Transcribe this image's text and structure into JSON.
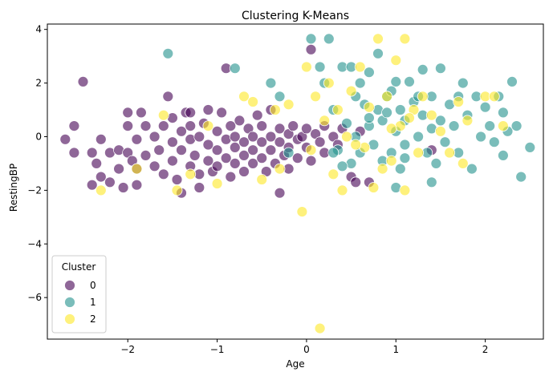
{
  "chart_data": {
    "type": "scatter",
    "title": "Clustering K-Means",
    "xlabel": "Age",
    "ylabel": "RestingBP",
    "xlim": [
      -2.9,
      2.65
    ],
    "ylim": [
      -7.55,
      4.2
    ],
    "xticks": [
      -2,
      -1,
      0,
      1,
      2
    ],
    "yticks": [
      -6,
      -4,
      -2,
      0,
      2,
      4
    ],
    "xtick_labels": [
      "−2",
      "−1",
      "0",
      "1",
      "2"
    ],
    "ytick_labels": [
      "−6",
      "−4",
      "−2",
      "0",
      "2",
      "4"
    ],
    "grid": false,
    "legend": {
      "title": "Cluster",
      "position": "lower-left",
      "entries": [
        "0",
        "1",
        "2"
      ]
    },
    "series": [
      {
        "name": "0",
        "color": "#440154",
        "points": [
          [
            -2.5,
            2.05
          ],
          [
            -2.7,
            -0.1
          ],
          [
            -2.6,
            0.4
          ],
          [
            -2.6,
            -0.6
          ],
          [
            -2.3,
            -0.1
          ],
          [
            -2.35,
            -1.0
          ],
          [
            -2.4,
            -0.6
          ],
          [
            -2.3,
            -1.5
          ],
          [
            -2.4,
            -1.8
          ],
          [
            -2.2,
            -0.6
          ],
          [
            -2.2,
            -1.7
          ],
          [
            -2.1,
            -0.5
          ],
          [
            -2.1,
            -1.2
          ],
          [
            -2.05,
            -1.9
          ],
          [
            -2.0,
            0.9
          ],
          [
            -2.0,
            0.4
          ],
          [
            -2.0,
            -0.6
          ],
          [
            -1.95,
            -0.9
          ],
          [
            -1.9,
            -1.2
          ],
          [
            -1.9,
            -0.1
          ],
          [
            -1.9,
            -1.8
          ],
          [
            -1.85,
            0.9
          ],
          [
            -1.8,
            0.4
          ],
          [
            -1.8,
            -0.7
          ],
          [
            -1.7,
            -1.1
          ],
          [
            -1.7,
            0.0
          ],
          [
            -1.65,
            -0.5
          ],
          [
            -1.6,
            -1.4
          ],
          [
            -1.6,
            0.4
          ],
          [
            -1.55,
            1.5
          ],
          [
            -1.5,
            -0.2
          ],
          [
            -1.5,
            -0.9
          ],
          [
            -1.5,
            0.7
          ],
          [
            -1.45,
            -1.6
          ],
          [
            -1.4,
            0.2
          ],
          [
            -1.4,
            -0.5
          ],
          [
            -1.4,
            -2.1
          ],
          [
            -1.35,
            0.9
          ],
          [
            -1.3,
            -1.1
          ],
          [
            -1.3,
            0.4
          ],
          [
            -1.3,
            -0.1
          ],
          [
            -1.25,
            -0.7
          ],
          [
            -1.2,
            -1.4
          ],
          [
            -1.2,
            0.0
          ],
          [
            -1.2,
            -1.9
          ],
          [
            -1.15,
            0.5
          ],
          [
            -1.1,
            -0.3
          ],
          [
            -1.1,
            -0.9
          ],
          [
            -1.1,
            1.0
          ],
          [
            -1.05,
            -1.3
          ],
          [
            -1.0,
            0.2
          ],
          [
            -1.0,
            -0.5
          ],
          [
            -1.0,
            -1.1
          ],
          [
            -0.95,
            0.9
          ],
          [
            -0.9,
            -0.1
          ],
          [
            -0.9,
            -0.8
          ],
          [
            -0.85,
            0.4
          ],
          [
            -0.85,
            -1.5
          ],
          [
            -0.8,
            0.0
          ],
          [
            -0.8,
            -0.4
          ],
          [
            -0.8,
            -1.0
          ],
          [
            -0.75,
            0.6
          ],
          [
            -0.7,
            -0.2
          ],
          [
            -0.7,
            -0.7
          ],
          [
            -0.7,
            -1.3
          ],
          [
            -0.65,
            0.3
          ],
          [
            -0.6,
            0.0
          ],
          [
            -0.6,
            -0.5
          ],
          [
            -0.6,
            -1.0
          ],
          [
            -0.55,
            0.8
          ],
          [
            -0.5,
            -0.2
          ],
          [
            -0.5,
            -0.8
          ],
          [
            -0.5,
            0.4
          ],
          [
            -0.45,
            -1.3
          ],
          [
            -0.4,
            0.0
          ],
          [
            -0.4,
            -0.5
          ],
          [
            -0.4,
            1.0
          ],
          [
            -0.35,
            -1.0
          ],
          [
            -0.3,
            0.3
          ],
          [
            -0.3,
            -0.2
          ],
          [
            -0.3,
            -2.1
          ],
          [
            -0.25,
            -0.7
          ],
          [
            -0.2,
            0.1
          ],
          [
            -0.2,
            -0.4
          ],
          [
            -0.2,
            -1.2
          ],
          [
            -0.15,
            0.4
          ],
          [
            -0.1,
            -0.1
          ],
          [
            -0.1,
            -0.8
          ],
          [
            -0.05,
            0.0
          ],
          [
            0.0,
            0.3
          ],
          [
            0.0,
            -0.4
          ],
          [
            0.05,
            3.25
          ],
          [
            0.05,
            -0.9
          ],
          [
            0.1,
            0.1
          ],
          [
            0.15,
            -0.2
          ],
          [
            0.2,
            0.4
          ],
          [
            0.2,
            -0.6
          ],
          [
            0.3,
            0.0
          ],
          [
            0.35,
            -0.3
          ],
          [
            0.4,
            0.3
          ],
          [
            0.5,
            -1.5
          ],
          [
            0.55,
            -1.7
          ],
          [
            0.6,
            0.2
          ],
          [
            0.7,
            -1.7
          ],
          [
            1.4,
            -0.5
          ],
          [
            -0.9,
            2.55
          ],
          [
            -1.3,
            0.9
          ]
        ]
      },
      {
        "name": "1",
        "color": "#21918c",
        "points": [
          [
            -1.55,
            3.1
          ],
          [
            -0.8,
            2.55
          ],
          [
            -0.4,
            2.0
          ],
          [
            -0.3,
            1.5
          ],
          [
            -0.2,
            -0.6
          ],
          [
            0.05,
            3.65
          ],
          [
            0.25,
            3.65
          ],
          [
            0.15,
            2.6
          ],
          [
            0.2,
            2.0
          ],
          [
            0.3,
            1.0
          ],
          [
            0.35,
            -0.5
          ],
          [
            0.4,
            2.6
          ],
          [
            0.45,
            0.5
          ],
          [
            0.5,
            2.6
          ],
          [
            0.5,
            -1.0
          ],
          [
            0.55,
            1.5
          ],
          [
            0.55,
            0.0
          ],
          [
            0.6,
            2.0
          ],
          [
            0.6,
            -0.6
          ],
          [
            0.65,
            1.2
          ],
          [
            0.7,
            0.4
          ],
          [
            0.7,
            2.4
          ],
          [
            0.75,
            -0.3
          ],
          [
            0.8,
            3.1
          ],
          [
            0.8,
            1.0
          ],
          [
            0.85,
            0.6
          ],
          [
            0.9,
            1.5
          ],
          [
            0.95,
            -0.6
          ],
          [
            1.0,
            0.2
          ],
          [
            1.0,
            2.05
          ],
          [
            1.05,
            1.0
          ],
          [
            1.05,
            -1.2
          ],
          [
            1.1,
            0.6
          ],
          [
            1.1,
            -0.3
          ],
          [
            1.15,
            2.05
          ],
          [
            1.2,
            1.3
          ],
          [
            1.25,
            0.0
          ],
          [
            1.3,
            2.5
          ],
          [
            1.3,
            0.8
          ],
          [
            1.35,
            -0.6
          ],
          [
            1.4,
            1.5
          ],
          [
            1.4,
            0.3
          ],
          [
            1.45,
            -1.0
          ],
          [
            1.5,
            2.55
          ],
          [
            1.5,
            0.6
          ],
          [
            1.55,
            -0.2
          ],
          [
            1.6,
            1.2
          ],
          [
            1.65,
            0.4
          ],
          [
            1.7,
            1.5
          ],
          [
            1.7,
            -0.6
          ],
          [
            1.75,
            2.0
          ],
          [
            1.8,
            0.8
          ],
          [
            1.85,
            -1.2
          ],
          [
            1.9,
            1.5
          ],
          [
            1.95,
            0.0
          ],
          [
            2.0,
            1.1
          ],
          [
            2.05,
            0.4
          ],
          [
            2.1,
            -0.2
          ],
          [
            2.15,
            1.5
          ],
          [
            2.2,
            0.9
          ],
          [
            2.2,
            -0.7
          ],
          [
            2.25,
            0.2
          ],
          [
            2.3,
            2.05
          ],
          [
            2.35,
            0.4
          ],
          [
            2.4,
            -1.5
          ],
          [
            2.5,
            -0.4
          ],
          [
            1.4,
            -1.7
          ],
          [
            0.95,
            1.7
          ],
          [
            1.25,
            1.5
          ],
          [
            0.85,
            -0.9
          ],
          [
            0.4,
            -1.1
          ],
          [
            0.3,
            -0.6
          ],
          [
            1.0,
            -1.9
          ],
          [
            1.1,
            -0.8
          ],
          [
            0.9,
            0.9
          ],
          [
            0.7,
            0.7
          ]
        ]
      },
      {
        "name": "2",
        "color": "#fde725",
        "points": [
          [
            -2.3,
            -2.0
          ],
          [
            -1.9,
            -1.2
          ],
          [
            -1.6,
            0.8
          ],
          [
            -1.45,
            -2.0
          ],
          [
            -1.3,
            -1.4
          ],
          [
            -1.1,
            0.4
          ],
          [
            -1.0,
            -1.75
          ],
          [
            -0.7,
            1.5
          ],
          [
            -0.6,
            1.3
          ],
          [
            -0.5,
            -1.6
          ],
          [
            -0.35,
            1.0
          ],
          [
            -0.3,
            -1.2
          ],
          [
            -0.2,
            1.2
          ],
          [
            -0.05,
            -2.8
          ],
          [
            0.0,
            2.6
          ],
          [
            0.05,
            -0.5
          ],
          [
            0.1,
            1.5
          ],
          [
            0.15,
            -7.15
          ],
          [
            0.2,
            0.6
          ],
          [
            0.25,
            2.0
          ],
          [
            0.3,
            -1.4
          ],
          [
            0.35,
            1.0
          ],
          [
            0.4,
            -2.0
          ],
          [
            0.45,
            0.0
          ],
          [
            0.5,
            1.7
          ],
          [
            0.6,
            2.6
          ],
          [
            0.65,
            -0.4
          ],
          [
            0.7,
            1.1
          ],
          [
            0.8,
            3.65
          ],
          [
            0.85,
            -1.2
          ],
          [
            0.9,
            1.5
          ],
          [
            0.95,
            -0.9
          ],
          [
            1.0,
            2.85
          ],
          [
            1.05,
            0.4
          ],
          [
            1.1,
            3.65
          ],
          [
            1.1,
            -2.0
          ],
          [
            1.2,
            1.0
          ],
          [
            1.25,
            -0.6
          ],
          [
            1.3,
            1.5
          ],
          [
            1.4,
            0.8
          ],
          [
            1.5,
            0.2
          ],
          [
            1.6,
            -0.6
          ],
          [
            1.7,
            1.3
          ],
          [
            1.75,
            -1.0
          ],
          [
            1.8,
            0.6
          ],
          [
            2.0,
            1.5
          ],
          [
            2.1,
            1.5
          ],
          [
            2.2,
            0.4
          ],
          [
            0.75,
            -1.9
          ],
          [
            0.55,
            -0.3
          ],
          [
            0.95,
            0.3
          ],
          [
            1.15,
            0.7
          ]
        ]
      }
    ]
  }
}
